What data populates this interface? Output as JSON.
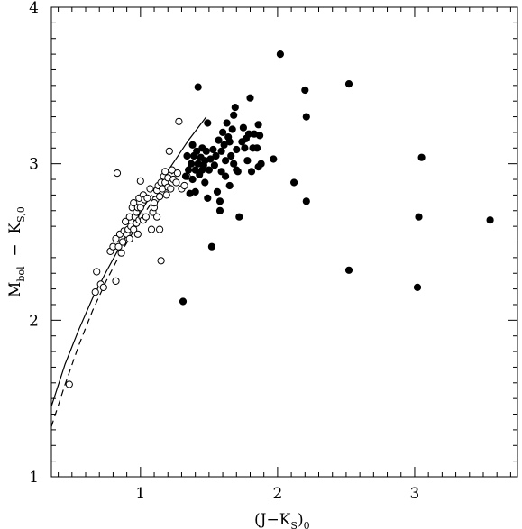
{
  "chart_data": {
    "type": "scatter",
    "xlabel": {
      "main": "(J−K",
      "sub1": "S",
      "close": ")",
      "sub2": "0"
    },
    "ylabel": {
      "main1": "M",
      "sub1": "bol",
      "mid": "  −  K",
      "sub2": "S,0"
    },
    "xlim": [
      0.35,
      3.75
    ],
    "ylim": [
      1.0,
      4.0
    ],
    "xticks": [
      1,
      2,
      3
    ],
    "xtick_labels": [
      "1",
      "2",
      "3"
    ],
    "yticks": [
      1,
      2,
      3,
      4
    ],
    "ytick_labels": [
      "1",
      "2",
      "3",
      "4"
    ],
    "x_minor_step": 0.1,
    "y_minor_step": 0.1,
    "grid": false,
    "series": [
      {
        "marker": "open-circle",
        "color": "#000000",
        "points": [
          [
            0.48,
            1.59
          ],
          [
            0.67,
            2.18
          ],
          [
            0.68,
            2.31
          ],
          [
            0.71,
            2.23
          ],
          [
            0.73,
            2.21
          ],
          [
            0.78,
            2.44
          ],
          [
            0.8,
            2.47
          ],
          [
            0.82,
            2.25
          ],
          [
            0.82,
            2.52
          ],
          [
            0.83,
            2.94
          ],
          [
            0.84,
            2.47
          ],
          [
            0.85,
            2.55
          ],
          [
            0.86,
            2.43
          ],
          [
            0.87,
            2.5
          ],
          [
            0.88,
            2.57
          ],
          [
            0.89,
            2.63
          ],
          [
            0.9,
            2.55
          ],
          [
            0.91,
            2.58
          ],
          [
            0.92,
            2.66
          ],
          [
            0.92,
            2.52
          ],
          [
            0.93,
            2.6
          ],
          [
            0.94,
            2.72
          ],
          [
            0.95,
            2.75
          ],
          [
            0.95,
            2.58
          ],
          [
            0.96,
            2.66
          ],
          [
            0.97,
            2.62
          ],
          [
            0.97,
            2.69
          ],
          [
            0.98,
            2.55
          ],
          [
            0.98,
            2.72
          ],
          [
            0.99,
            2.78
          ],
          [
            0.99,
            2.64
          ],
          [
            1.0,
            2.72
          ],
          [
            1.0,
            2.89
          ],
          [
            1.01,
            2.66
          ],
          [
            1.02,
            2.8
          ],
          [
            1.02,
            2.64
          ],
          [
            1.03,
            2.77
          ],
          [
            1.04,
            2.66
          ],
          [
            1.05,
            2.78
          ],
          [
            1.07,
            2.84
          ],
          [
            1.08,
            2.58
          ],
          [
            1.09,
            2.69
          ],
          [
            1.1,
            2.81
          ],
          [
            1.1,
            2.72
          ],
          [
            1.11,
            2.77
          ],
          [
            1.12,
            2.83
          ],
          [
            1.12,
            2.66
          ],
          [
            1.13,
            2.86
          ],
          [
            1.14,
            2.79
          ],
          [
            1.14,
            2.58
          ],
          [
            1.15,
            2.38
          ],
          [
            1.15,
            2.88
          ],
          [
            1.16,
            2.84
          ],
          [
            1.17,
            2.92
          ],
          [
            1.18,
            2.88
          ],
          [
            1.18,
            2.95
          ],
          [
            1.19,
            2.8
          ],
          [
            1.2,
            2.85
          ],
          [
            1.2,
            2.91
          ],
          [
            1.21,
            3.08
          ],
          [
            1.22,
            2.84
          ],
          [
            1.23,
            2.96
          ],
          [
            1.24,
            2.9
          ],
          [
            1.26,
            2.88
          ],
          [
            1.27,
            2.94
          ],
          [
            1.28,
            3.27
          ],
          [
            1.3,
            2.84
          ],
          [
            1.32,
            2.86
          ],
          [
            1.34,
            2.92
          ],
          [
            1.1,
            2.75
          ]
        ]
      },
      {
        "marker": "filled-circle",
        "color": "#000000",
        "points": [
          [
            1.31,
            2.12
          ],
          [
            1.33,
            2.92
          ],
          [
            1.34,
            3.05
          ],
          [
            1.35,
            2.96
          ],
          [
            1.36,
            2.81
          ],
          [
            1.37,
            3.0
          ],
          [
            1.38,
            3.12
          ],
          [
            1.38,
            2.9
          ],
          [
            1.39,
            3.05
          ],
          [
            1.4,
            2.82
          ],
          [
            1.4,
            2.96
          ],
          [
            1.41,
            3.08
          ],
          [
            1.42,
            3.49
          ],
          [
            1.42,
            3.0
          ],
          [
            1.43,
            2.93
          ],
          [
            1.44,
            3.04
          ],
          [
            1.45,
            3.1
          ],
          [
            1.45,
            2.96
          ],
          [
            1.46,
            2.99
          ],
          [
            1.47,
            3.02
          ],
          [
            1.47,
            2.88
          ],
          [
            1.48,
            3.08
          ],
          [
            1.49,
            2.78
          ],
          [
            1.49,
            3.26
          ],
          [
            1.5,
            2.96
          ],
          [
            1.51,
            3.03
          ],
          [
            1.52,
            2.47
          ],
          [
            1.53,
            3.09
          ],
          [
            1.54,
            2.99
          ],
          [
            1.55,
            3.05
          ],
          [
            1.56,
            2.82
          ],
          [
            1.57,
            3.15
          ],
          [
            1.58,
            2.7
          ],
          [
            1.58,
            2.76
          ],
          [
            1.59,
            3.08
          ],
          [
            1.6,
            3.2
          ],
          [
            1.61,
            3.12
          ],
          [
            1.62,
            3.02
          ],
          [
            1.62,
            2.92
          ],
          [
            1.63,
            3.26
          ],
          [
            1.64,
            3.17
          ],
          [
            1.65,
            2.86
          ],
          [
            1.65,
            3.14
          ],
          [
            1.66,
            3.05
          ],
          [
            1.67,
            3.22
          ],
          [
            1.68,
            3.31
          ],
          [
            1.68,
            3.0
          ],
          [
            1.69,
            3.36
          ],
          [
            1.7,
            3.09
          ],
          [
            1.7,
            2.96
          ],
          [
            1.72,
            2.66
          ],
          [
            1.74,
            3.14
          ],
          [
            1.75,
            3.23
          ],
          [
            1.76,
            3.1
          ],
          [
            1.77,
            3.16
          ],
          [
            1.78,
            3.02
          ],
          [
            1.79,
            3.19
          ],
          [
            1.8,
            3.42
          ],
          [
            1.81,
            2.95
          ],
          [
            1.82,
            3.1
          ],
          [
            1.83,
            3.19
          ],
          [
            1.85,
            3.1
          ],
          [
            1.86,
            3.25
          ],
          [
            1.86,
            2.98
          ],
          [
            1.87,
            3.18
          ],
          [
            1.88,
            3.0
          ],
          [
            1.97,
            3.03
          ],
          [
            2.02,
            3.7
          ],
          [
            2.12,
            2.88
          ],
          [
            2.2,
            3.47
          ],
          [
            2.21,
            3.3
          ],
          [
            2.21,
            2.76
          ],
          [
            2.52,
            3.51
          ],
          [
            2.52,
            2.32
          ],
          [
            3.02,
            2.21
          ],
          [
            3.03,
            2.66
          ],
          [
            3.05,
            3.04
          ],
          [
            3.55,
            2.64
          ],
          [
            1.71,
            2.95
          ],
          [
            1.59,
            2.95
          ]
        ]
      },
      {
        "marker": "solid-line",
        "color": "#000000",
        "points": [
          [
            0.35,
            1.45
          ],
          [
            0.45,
            1.72
          ],
          [
            0.55,
            1.94
          ],
          [
            0.65,
            2.14
          ],
          [
            0.75,
            2.31
          ],
          [
            0.85,
            2.47
          ],
          [
            0.95,
            2.62
          ],
          [
            1.05,
            2.76
          ],
          [
            1.15,
            2.89
          ],
          [
            1.25,
            3.02
          ],
          [
            1.35,
            3.15
          ],
          [
            1.48,
            3.3
          ]
        ]
      },
      {
        "marker": "dashed-line",
        "color": "#000000",
        "points": [
          [
            0.35,
            1.32
          ],
          [
            0.45,
            1.59
          ],
          [
            0.55,
            1.84
          ],
          [
            0.65,
            2.06
          ],
          [
            0.75,
            2.25
          ],
          [
            0.85,
            2.42
          ],
          [
            0.95,
            2.57
          ],
          [
            1.05,
            2.71
          ],
          [
            1.15,
            2.84
          ],
          [
            1.25,
            2.96
          ]
        ]
      }
    ]
  }
}
